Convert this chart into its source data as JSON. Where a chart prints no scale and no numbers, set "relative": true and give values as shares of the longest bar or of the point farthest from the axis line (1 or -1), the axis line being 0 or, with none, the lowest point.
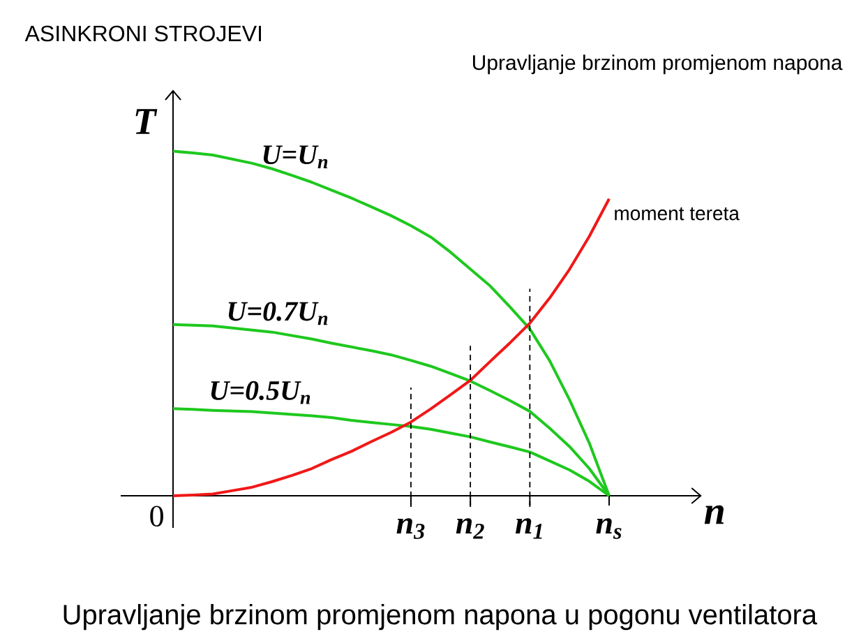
{
  "chart_data": {
    "type": "line",
    "title": "ASINKRONI STROJEVI",
    "subtitle": "Upravljanje brzinom promjenom napona",
    "xlabel": "n",
    "ylabel": "T",
    "relative": true,
    "marker": "none",
    "categories": [
      null,
      null,
      null,
      null,
      null,
      null,
      null,
      null,
      null,
      null,
      null,
      null,
      "n$_{3}$",
      null,
      null,
      "n$_{2}$",
      null,
      null,
      "n$_{1}$",
      null,
      null,
      null,
      "n$_{s}$"
    ],
    "series": [
      {
        "name": "U=U$_{n}$",
        "color": "#1ec81e",
        "values": [
          1,
          0.995,
          0.989,
          0.977,
          0.965,
          0.949,
          0.93,
          0.91,
          0.887,
          0.864,
          0.839,
          0.813,
          0.784,
          0.751,
          0.707,
          0.658,
          0.609,
          0.548,
          0.484,
          0.392,
          0.279,
          0.153,
          0
        ]
      },
      {
        "name": "U=0.7U$_{n}$",
        "color": "#1ec81e",
        "values": [
          0.497,
          0.495,
          0.493,
          0.487,
          0.481,
          0.475,
          0.465,
          0.455,
          0.443,
          0.432,
          0.421,
          0.409,
          0.393,
          0.376,
          0.355,
          0.333,
          0.305,
          0.276,
          0.245,
          0.196,
          0.143,
          0.079,
          0
        ]
      },
      {
        "name": "U=0.5U$_{n}$",
        "color": "#1ec81e",
        "values": [
          0.253,
          0.251,
          0.248,
          0.246,
          0.244,
          0.24,
          0.236,
          0.232,
          0.227,
          0.219,
          0.213,
          0.207,
          0.201,
          0.193,
          0.182,
          0.171,
          0.156,
          0.142,
          0.127,
          0.101,
          0.075,
          0.042,
          0
        ]
      },
      {
        "name": "moment tereta",
        "color": "#f01818",
        "values": [
          0,
          0.002,
          0.005,
          0.015,
          0.025,
          0.041,
          0.059,
          0.079,
          0.105,
          0.129,
          0.157,
          0.184,
          0.214,
          0.252,
          0.293,
          0.335,
          0.39,
          0.444,
          0.501,
          0.574,
          0.657,
          0.753,
          0.862
        ]
      }
    ],
    "ref_lines": [
      {
        "axis": "x",
        "value": "n$_{3}$",
        "line_style": "dashed",
        "color": "#000000"
      },
      {
        "axis": "x",
        "value": "n$_{2}$",
        "line_style": "dashed",
        "color": "#000000"
      },
      {
        "axis": "x",
        "value": "n$_{1}$",
        "line_style": "dashed",
        "color": "#000000"
      }
    ],
    "annotations": [
      "0",
      "Upravljanje brzinom promjenom napona u pogonu ventilatora"
    ]
  }
}
